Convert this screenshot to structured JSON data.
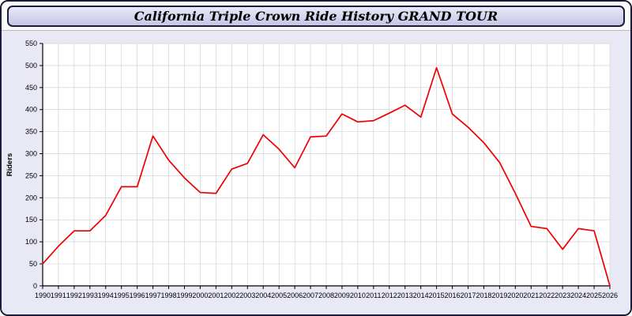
{
  "window": {
    "title": "California Triple Crown Ride History GRAND TOUR"
  },
  "colors": {
    "border": "#1c1c3a",
    "window_bg": "#e9e9f6",
    "titlebar_top": "#e8e8fb",
    "titlebar_bottom": "#c6c6e6",
    "plot_bg": "#ffffff",
    "grid": "#cccccc",
    "axis": "#000000",
    "line": "#ee0000"
  },
  "chart_data": {
    "type": "line",
    "title": "California Triple Crown Ride History GRAND TOUR",
    "xlabel": "",
    "ylabel": "Riders",
    "ylim": [
      0,
      550
    ],
    "ytick_step": 50,
    "grid": true,
    "legend": "none",
    "x": [
      1990,
      1991,
      1992,
      1993,
      1994,
      1995,
      1996,
      1997,
      1998,
      1999,
      2000,
      2001,
      2002,
      2003,
      2004,
      2005,
      2006,
      2007,
      2008,
      2009,
      2010,
      2011,
      2012,
      2013,
      2014,
      2015,
      2016,
      2017,
      2018,
      2019,
      2020,
      2021,
      2022,
      2023,
      2024,
      2025,
      2026
    ],
    "series": [
      {
        "name": "Riders",
        "color": "#ee0000",
        "values": [
          50,
          90,
          125,
          125,
          160,
          225,
          225,
          340,
          285,
          245,
          212,
          210,
          265,
          278,
          343,
          310,
          268,
          338,
          340,
          390,
          372,
          375,
          392,
          410,
          383,
          495,
          390,
          360,
          325,
          280,
          210,
          135,
          130,
          83,
          130,
          125,
          0
        ]
      }
    ]
  }
}
